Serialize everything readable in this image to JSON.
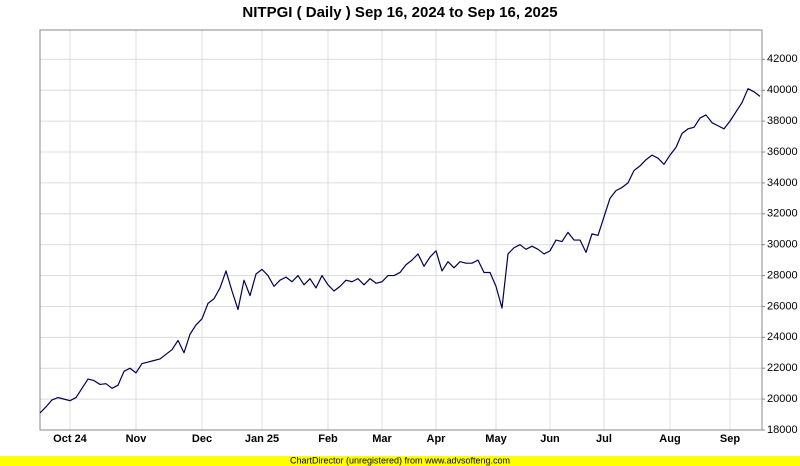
{
  "chart_data": {
    "type": "line",
    "title": "NITPGI ( Daily ) Sep 16, 2024 to Sep 16, 2025",
    "categories": [
      null,
      null,
      null,
      null,
      null,
      "Oct 24",
      null,
      null,
      null,
      null,
      null,
      null,
      null,
      null,
      null,
      null,
      "Nov",
      null,
      null,
      null,
      null,
      null,
      null,
      null,
      null,
      null,
      null,
      "Dec",
      null,
      null,
      null,
      null,
      null,
      null,
      null,
      null,
      null,
      "Jan 25",
      null,
      null,
      null,
      null,
      null,
      null,
      null,
      null,
      null,
      null,
      "Feb",
      null,
      null,
      null,
      null,
      null,
      null,
      null,
      null,
      "Mar",
      null,
      null,
      null,
      null,
      null,
      null,
      null,
      null,
      "Apr",
      null,
      null,
      null,
      null,
      null,
      null,
      null,
      null,
      null,
      "May",
      null,
      null,
      null,
      null,
      null,
      null,
      null,
      null,
      "Jun",
      null,
      null,
      null,
      null,
      null,
      null,
      null,
      null,
      "Jul",
      null,
      null,
      null,
      null,
      null,
      null,
      null,
      null,
      null,
      null,
      "Aug",
      null,
      null,
      null,
      null,
      null,
      null,
      null,
      null,
      null,
      "Sep",
      null,
      null,
      null,
      null,
      null
    ],
    "series": [
      {
        "name": "NITPGI",
        "color": "#000050",
        "values": [
          19100,
          19500,
          19950,
          20100,
          20000,
          19900,
          20100,
          20700,
          21300,
          21200,
          20950,
          21000,
          20700,
          20900,
          21800,
          22000,
          21700,
          22300,
          22400,
          22500,
          22600,
          22900,
          23200,
          23800,
          23000,
          24200,
          24800,
          25200,
          26200,
          26500,
          27200,
          28300,
          27000,
          25800,
          27700,
          26700,
          28100,
          28400,
          28000,
          27300,
          27700,
          27900,
          27600,
          28000,
          27400,
          27800,
          27200,
          28000,
          27400,
          27000,
          27300,
          27700,
          27600,
          27800,
          27400,
          27800,
          27500,
          27600,
          28000,
          28000,
          28200,
          28700,
          29000,
          29400,
          28600,
          29200,
          29600,
          28300,
          28900,
          28500,
          28900,
          28800,
          28800,
          29000,
          28200,
          28200,
          27300,
          25900,
          29400,
          29800,
          30000,
          29700,
          29900,
          29700,
          29400,
          29600,
          30300,
          30200,
          30800,
          30300,
          30300,
          29500,
          30700,
          30600,
          31800,
          33000,
          33500,
          33700,
          34000,
          34800,
          35100,
          35500,
          35800,
          35600,
          35200,
          35800,
          36300,
          37200,
          37500,
          37600,
          38200,
          38400,
          37900,
          37700,
          37500,
          38000,
          38600,
          39200,
          40100,
          39900,
          39600
        ]
      }
    ],
    "ylim": [
      18000,
      43900
    ],
    "yticks": [
      18000,
      20000,
      22000,
      24000,
      26000,
      28000,
      30000,
      32000,
      34000,
      36000,
      38000,
      40000,
      42000
    ],
    "grid": true
  },
  "footer": "ChartDirector (unregistered) from www.advsofteng.com"
}
